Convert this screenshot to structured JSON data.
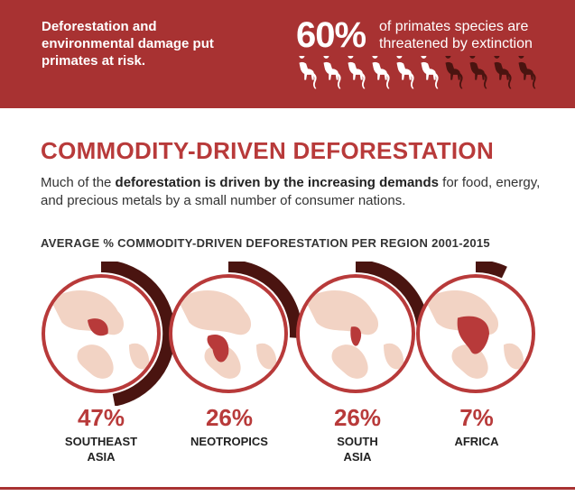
{
  "banner": {
    "text": "Deforestation and environmental damage put primates at risk.",
    "stat_value": "60%",
    "stat_text": "of primates species are threatened by extinction",
    "icons": {
      "total": 10,
      "threatened": 6,
      "name": "monkey-icon",
      "threatened_color": "#ffffff",
      "other_color": "#4a1410"
    },
    "color": "#a83232"
  },
  "section": {
    "title": "COMMODITY-DRIVEN DEFORESTATION",
    "intro_pre": "Much of the ",
    "intro_bold": "deforestation is driven by the increasing demands",
    "intro_post": " for food, energy, and precious metals by a small number of consumer nations."
  },
  "chart_data": {
    "type": "donut",
    "title": "AVERAGE % COMMODITY-DRIVEN DEFORESTATION PER REGION 2001-2015",
    "categories": [
      "SOUTHEAST ASIA",
      "NEOTROPICS",
      "SOUTH ASIA",
      "AFRICA"
    ],
    "values": [
      47,
      26,
      26,
      7
    ],
    "value_labels": [
      "47%",
      "26%",
      "26%",
      "7%"
    ],
    "unit": "%",
    "region_lines": [
      [
        "SOUTHEAST",
        "ASIA"
      ],
      [
        "NEOTROPICS"
      ],
      [
        "SOUTH",
        "ASIA"
      ],
      [
        "AFRICA"
      ]
    ],
    "arc_color": "#4a1410",
    "circle_color": "#b83a3a",
    "land_color": "#f2d3c4",
    "highlight_color": "#b83a3a"
  }
}
